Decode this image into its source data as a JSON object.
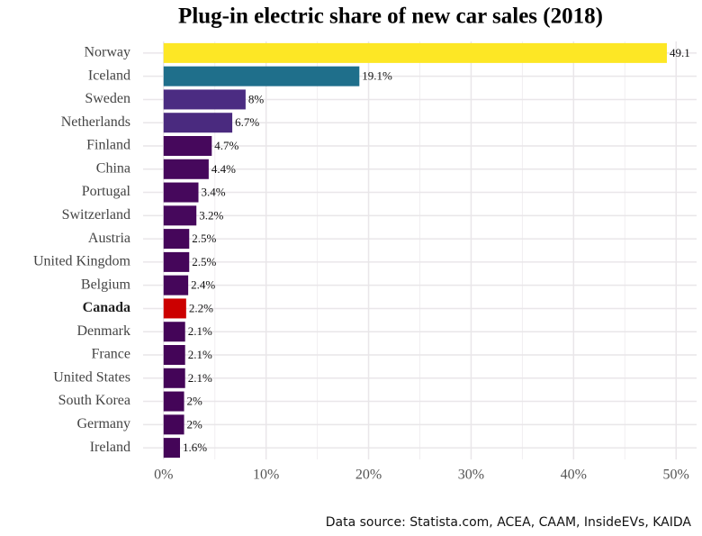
{
  "chart_data": {
    "type": "bar",
    "orientation": "horizontal",
    "title": "Plug-in electric share of new car sales (2018)",
    "source": "Data source: Statista.com, ACEA, CAAM, InsideEVs, KAIDA",
    "categories": [
      "Norway",
      "Iceland",
      "Sweden",
      "Netherlands",
      "Finland",
      "China",
      "Portugal",
      "Switzerland",
      "Austria",
      "United Kingdom",
      "Belgium",
      "Canada",
      "Denmark",
      "France",
      "United States",
      "South Korea",
      "Germany",
      "Ireland"
    ],
    "values": [
      49.1,
      19.1,
      8,
      6.7,
      4.7,
      4.4,
      3.4,
      3.2,
      2.5,
      2.5,
      2.4,
      2.2,
      2.1,
      2.1,
      2.1,
      2,
      2,
      1.6
    ],
    "value_labels": [
      "49.1",
      "19.1%",
      "8%",
      "6.7%",
      "4.7%",
      "4.4%",
      "3.4%",
      "3.2%",
      "2.5%",
      "2.5%",
      "2.4%",
      "2.2%",
      "2.1%",
      "2.1%",
      "2.1%",
      "2%",
      "2%",
      "1.6%"
    ],
    "colors": [
      "#fde725",
      "#1f6f8b",
      "#4b2c82",
      "#4a2a7f",
      "#46085c",
      "#46085c",
      "#46085c",
      "#46085c",
      "#45065a",
      "#45065a",
      "#45065a",
      "#cc0000",
      "#440558",
      "#440558",
      "#440558",
      "#440558",
      "#440558",
      "#440558"
    ],
    "highlight": "Canada",
    "xlim": [
      -2,
      52
    ],
    "xticks": [
      {
        "value": 0,
        "label": "0%"
      },
      {
        "value": 10,
        "label": "10%"
      },
      {
        "value": 20,
        "label": "20%"
      },
      {
        "value": 30,
        "label": "30%"
      },
      {
        "value": 40,
        "label": "40%"
      },
      {
        "value": 50,
        "label": "50%"
      }
    ],
    "minor_xticks": [
      5,
      15,
      25,
      35,
      45
    ],
    "grid": true
  }
}
